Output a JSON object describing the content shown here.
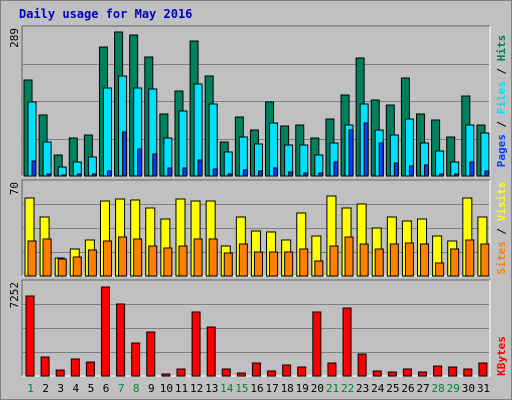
{
  "chart_data": {
    "title": "Daily usage for May 2016",
    "type": "bar",
    "categories": [
      "1",
      "2",
      "3",
      "4",
      "5",
      "6",
      "7",
      "8",
      "9",
      "10",
      "11",
      "12",
      "13",
      "14",
      "15",
      "16",
      "17",
      "18",
      "19",
      "20",
      "21",
      "22",
      "23",
      "24",
      "25",
      "26",
      "27",
      "28",
      "29",
      "30",
      "31"
    ],
    "weekend_days": [
      "1",
      "7",
      "8",
      "14",
      "15",
      "21",
      "22",
      "28",
      "29"
    ],
    "colors": {
      "background": "#c0c0c0",
      "title": "#0000c0",
      "day_label": "#000000",
      "weekend_label": "#008040",
      "hits": "#00805c",
      "files": "#00e0ff",
      "pages": "#0040ff",
      "visits": "#ffff00",
      "sites": "#ff8000",
      "kbytes": "#ff0000"
    },
    "panels": [
      {
        "id": "hits-files-pages",
        "ymax_label": "289",
        "ylim": [
          0,
          289
        ],
        "legend": [
          "Pages",
          "Files",
          "Hits"
        ],
        "series": [
          {
            "name": "Hits",
            "values": [
              193,
              123,
              42,
              76,
              83,
              258,
              289,
              282,
              238,
              125,
              170,
              271,
              200,
              69,
              118,
              93,
              149,
              100,
              102,
              76,
              114,
              162,
              237,
              153,
              142,
              197,
              125,
              113,
              78,
              161,
              103
            ]
          },
          {
            "name": "Files",
            "values": [
              148,
              68,
              18,
              28,
              38,
              177,
              200,
              176,
              174,
              77,
              130,
              185,
              145,
              48,
              78,
              64,
              106,
              62,
              62,
              42,
              66,
              102,
              145,
              93,
              82,
              115,
              66,
              50,
              29,
              103,
              86
            ]
          },
          {
            "name": "Pages",
            "values": [
              30,
              4,
              1,
              4,
              4,
              10,
              88,
              54,
              45,
              16,
              17,
              33,
              14,
              5,
              12,
              10,
              16,
              9,
              6,
              6,
              28,
              92,
              107,
              67,
              26,
              21,
              22,
              5,
              4,
              28,
              10
            ]
          }
        ]
      },
      {
        "id": "visits-sites",
        "ymax_label": "70",
        "ylim": [
          0,
          70
        ],
        "legend": [
          "Sites",
          "Visits"
        ],
        "series": [
          {
            "name": "Visits",
            "values": [
              61,
              46,
              14,
              21,
              28,
              58,
              60,
              59,
              53,
              44,
              60,
              58,
              58,
              23,
              46,
              35,
              34,
              28,
              49,
              31,
              62,
              53,
              56,
              37,
              46,
              43,
              44,
              31,
              27,
              61,
              46
            ]
          },
          {
            "name": "Sites",
            "values": [
              27,
              29,
              13,
              15,
              20,
              27,
              30,
              29,
              23,
              22,
              23,
              29,
              29,
              18,
              25,
              19,
              19,
              19,
              21,
              12,
              23,
              30,
              25,
              21,
              25,
              26,
              25,
              10,
              21,
              28,
              25
            ]
          }
        ]
      },
      {
        "id": "kbytes",
        "ymax_label": "7252",
        "ylim": [
          0,
          7252
        ],
        "legend": [
          "KBytes"
        ],
        "series": [
          {
            "name": "KBytes",
            "values": [
              6450,
              1560,
              460,
              1400,
              1160,
              7190,
              5790,
              2650,
              3580,
              140,
              560,
              5150,
              3970,
              550,
              230,
              1070,
              370,
              920,
              730,
              5140,
              1050,
              5480,
              1790,
              410,
              320,
              550,
              320,
              840,
              720,
              600,
              1030
            ]
          }
        ]
      }
    ]
  }
}
